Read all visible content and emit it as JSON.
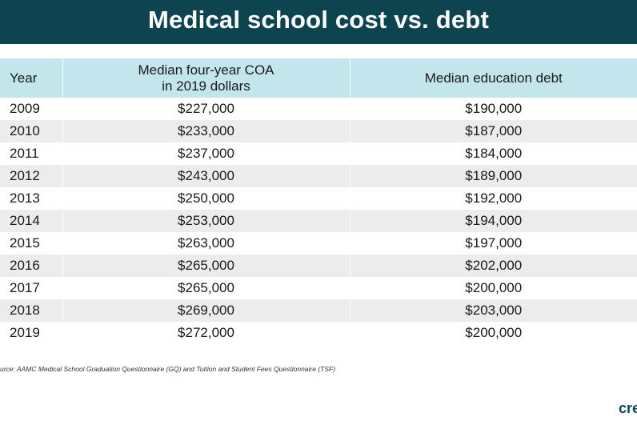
{
  "title": "Medical school cost vs. debt",
  "table": {
    "headers": {
      "year": "Year",
      "coa_line1": "Median four-year COA",
      "coa_line2": "in 2019 dollars",
      "debt": "Median education debt"
    },
    "rows": [
      {
        "year": "2009",
        "coa": "$227,000",
        "debt": "$190,000"
      },
      {
        "year": "2010",
        "coa": "$233,000",
        "debt": "$187,000"
      },
      {
        "year": "2011",
        "coa": "$237,000",
        "debt": "$184,000"
      },
      {
        "year": "2012",
        "coa": "$243,000",
        "debt": "$189,000"
      },
      {
        "year": "2013",
        "coa": "$250,000",
        "debt": "$192,000"
      },
      {
        "year": "2014",
        "coa": "$253,000",
        "debt": "$194,000"
      },
      {
        "year": "2015",
        "coa": "$263,000",
        "debt": "$197,000"
      },
      {
        "year": "2016",
        "coa": "$265,000",
        "debt": "$202,000"
      },
      {
        "year": "2017",
        "coa": "$265,000",
        "debt": "$200,000"
      },
      {
        "year": "2018",
        "coa": "$269,000",
        "debt": "$203,000"
      },
      {
        "year": "2019",
        "coa": "$272,000",
        "debt": "$200,000"
      }
    ]
  },
  "source": "urce: AAMC Medical School Graduation Questionnaire (GQ) and Tuition and Student Fees Questionnaire (TSF)",
  "brand": "cre",
  "colors": {
    "title_bg": "#0e4450",
    "header_bg": "#c2e6ec",
    "stripe_bg": "#ececec"
  }
}
